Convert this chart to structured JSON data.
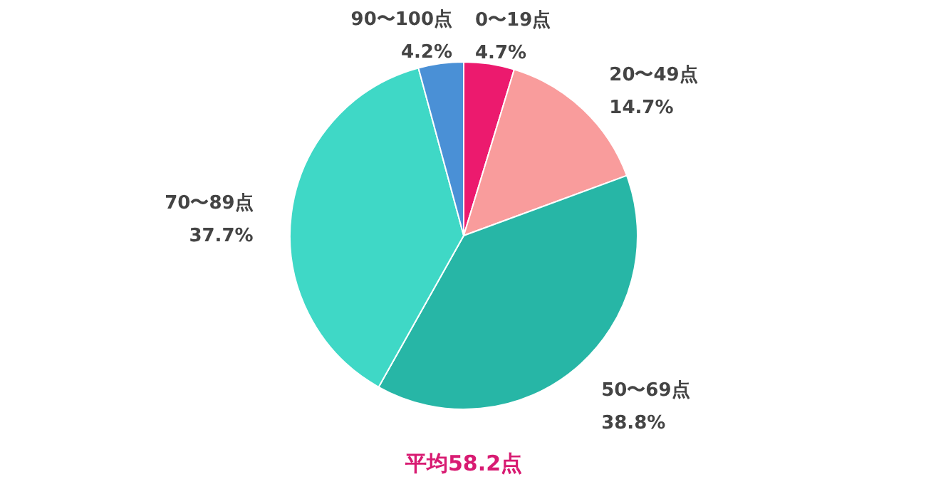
{
  "chart_data": {
    "type": "pie",
    "categories": [
      "0〜19点",
      "20〜49点",
      "50〜69点",
      "70〜89点",
      "90〜100点"
    ],
    "values": [
      4.7,
      14.7,
      38.8,
      37.7,
      4.2
    ],
    "value_labels": [
      "4.7%",
      "14.7%",
      "38.8%",
      "37.7%",
      "4.2%"
    ],
    "colors": [
      "#ec1a6e",
      "#f99c9c",
      "#27b6a6",
      "#3fd8c6",
      "#4a90d6"
    ],
    "annotations": [
      "平均58.2点"
    ]
  }
}
